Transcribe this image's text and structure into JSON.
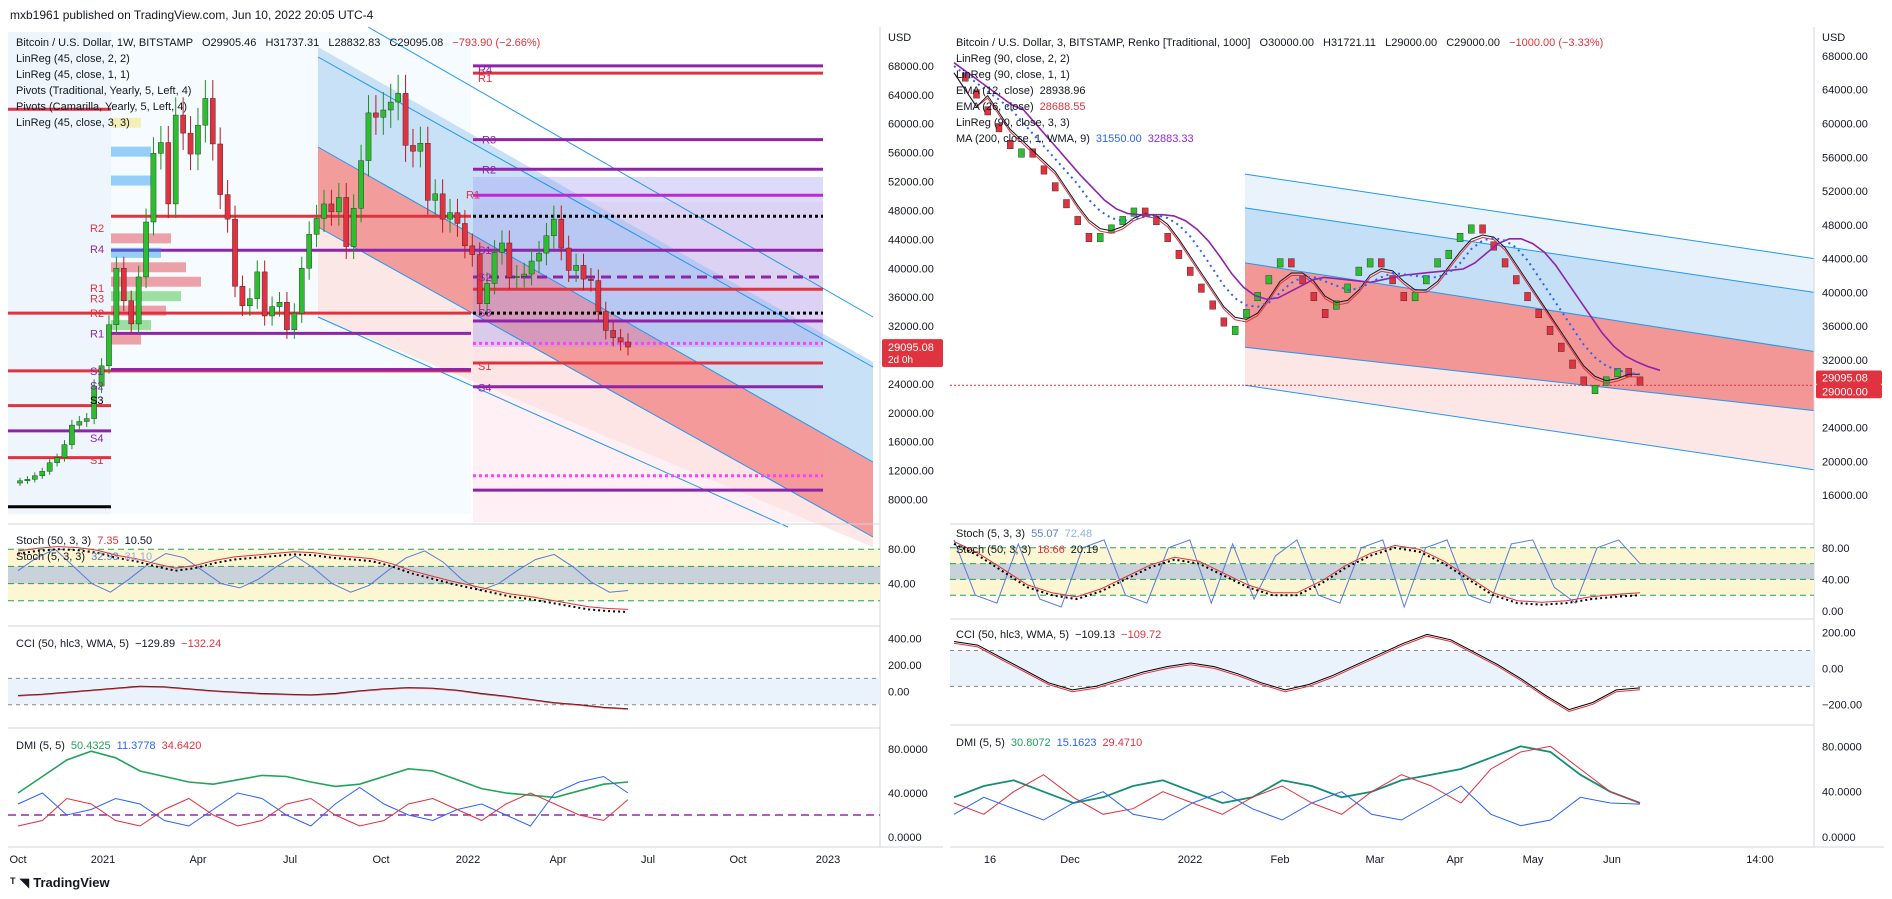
{
  "header": {
    "publisher": "mxb1961 published on TradingView.com, Jun 10, 2022 20:05 UTC-4"
  },
  "footer": {
    "brand": "TradingView",
    "logo": "tradingview-logo-icon"
  },
  "colors": {
    "up": "#2ebd2e",
    "down": "#e0323f",
    "pivot_red": "#e0323f",
    "pivot_purple": "#8a2be2",
    "channel_blue": "#2196f3",
    "stoch_blue": "#5a7bd8",
    "cci_black": "#000000",
    "dmi_green": "#22a35a"
  },
  "left_chart": {
    "title": "Bitcoin / U.S. Dollar, 1W, BITSTAMP",
    "ohlc": {
      "o": "O29905.46",
      "h": "H31737.31",
      "l": "L28832.83",
      "c": "C29095.08",
      "chg": "−793.90 (−2.66%)"
    },
    "indicators": [
      "LinReg (45, close, 2, 2)",
      "LinReg (45, close, 1, 1)",
      "Pivots (Traditional, Yearly, 5, Left, 4)",
      "Pivots (Camarilla, Yearly, 5, Left, 4)",
      "LinReg (45, close, 3, 3)"
    ],
    "currency": "USD",
    "price_ticks": [
      "68000.00",
      "64000.00",
      "60000.00",
      "56000.00",
      "52000.00",
      "48000.00",
      "44000.00",
      "40000.00",
      "36000.00",
      "32000.00",
      "28000.00",
      "24000.00",
      "20000.00",
      "16000.00",
      "12000.00",
      "8000.00"
    ],
    "last_price": "29095.08",
    "last_countdown": "2d 0h",
    "time_ticks": [
      "Oct",
      "2021",
      "Apr",
      "Jul",
      "Oct",
      "2022",
      "Apr",
      "Jul",
      "Oct",
      "2023"
    ],
    "pivot_labels": [
      "R4",
      "R1",
      "R3",
      "R2",
      "R1",
      "S1",
      "S2",
      "S3",
      "R2",
      "R4",
      "R1",
      "R3",
      "R2",
      "R1",
      "S1",
      "S2",
      "S3",
      "S1",
      "S4",
      "S4",
      "S1"
    ],
    "stoch": {
      "label1": "Stoch (50, 3, 3)",
      "v1a": "7.35",
      "v1b": "10.50",
      "label2": "Stoch (5, 3, 3)",
      "v2a": "32.93",
      "v2b": "31.10",
      "ticks": [
        "80.00",
        "40.00"
      ]
    },
    "cci": {
      "label": "CCI (50, hlc3, WMA, 5)",
      "v1": "−129.89",
      "v2": "−132.24",
      "ticks": [
        "400.00",
        "200.00",
        "0.00"
      ]
    },
    "dmi": {
      "label": "DMI (5, 5)",
      "v1": "50.4325",
      "v2": "11.3778",
      "v3": "34.6420",
      "ticks": [
        "80.0000",
        "40.0000",
        "0.0000"
      ]
    }
  },
  "right_chart": {
    "title": "Bitcoin / U.S. Dollar, 3, BITSTAMP, Renko [Traditional, 1000]",
    "ohlc": {
      "o": "O30000.00",
      "h": "H31721.11",
      "l": "L29000.00",
      "c": "C29000.00",
      "chg": "−1000.00 (−3.33%)"
    },
    "indicators": [
      "LinReg (90, close, 2, 2)",
      "LinReg (90, close, 1, 1)",
      "EMA (12, close)",
      "EMA (26, close)",
      "LinReg (90, close, 3, 3)",
      "MA (200, close, 1, WMA, 9)"
    ],
    "indicator_values": {
      "ema12": "28938.96",
      "ema26": "28688.55",
      "ma1": "31550.00",
      "ma2": "32883.33"
    },
    "currency": "USD",
    "price_ticks": [
      "68000.00",
      "64000.00",
      "60000.00",
      "56000.00",
      "52000.00",
      "48000.00",
      "44000.00",
      "40000.00",
      "36000.00",
      "32000.00",
      "28000.00",
      "24000.00",
      "20000.00",
      "16000.00"
    ],
    "last_price": "29095.08",
    "renko_price": "29000.00",
    "time_ticks": [
      "16",
      "Dec",
      "2022",
      "Feb",
      "Mar",
      "Apr",
      "May",
      "Jun",
      "14:00"
    ],
    "stoch": {
      "label1": "Stoch (5, 3, 3)",
      "v1a": "55.07",
      "v1b": "72.48",
      "label2": "Stoch (50, 3, 3)",
      "v2a": "18.66",
      "v2b": "20.19",
      "ticks": [
        "80.00",
        "40.00",
        "0.00"
      ]
    },
    "cci": {
      "label": "CCI (50, hlc3, WMA, 5)",
      "v1": "−109.13",
      "v2": "−109.72",
      "ticks": [
        "200.00",
        "0.00",
        "−200.00"
      ]
    },
    "dmi": {
      "label": "DMI (5, 5)",
      "v1": "30.8072",
      "v2": "15.1623",
      "v3": "29.4710",
      "ticks": [
        "80.0000",
        "40.0000",
        "0.0000"
      ]
    }
  },
  "chart_data": [
    {
      "type": "candlestick",
      "title": "Bitcoin / U.S. Dollar, 1W, BITSTAMP",
      "ylim": [
        6000,
        72000
      ],
      "x_range": [
        "Oct 2020",
        "Dec 2022"
      ],
      "closes": [
        10600,
        10800,
        11300,
        11900,
        13100,
        13800,
        15600,
        18300,
        18800,
        19200,
        23700,
        26500,
        32200,
        40000,
        35500,
        32300,
        38800,
        46400,
        55900,
        57400,
        48900,
        61200,
        58700,
        55800,
        59800,
        63500,
        57200,
        50200,
        46800,
        37500,
        34800,
        35800,
        39500,
        33400,
        34700,
        35300,
        31500,
        33800,
        40000,
        44700,
        46900,
        48900,
        47800,
        49800,
        43000,
        48300,
        54900,
        61500,
        60900,
        61900,
        63000,
        64200,
        57000,
        56200,
        57300,
        49400,
        50300,
        46800,
        47700,
        46200,
        43100,
        41900,
        35100,
        37900,
        42200,
        43500,
        38700,
        38900,
        39200,
        41000,
        42100,
        44500,
        46800,
        42800,
        39700,
        40400,
        38500,
        38300,
        34000,
        31400,
        30400,
        29800,
        29100
      ],
      "pivot_levels": [
        68000,
        67000,
        57800,
        53700,
        50100,
        47200,
        42500,
        38800,
        37100,
        33800,
        32700,
        29600,
        26900,
        23600,
        11300,
        9300
      ],
      "stoch_5_3_3": [
        55,
        70,
        80,
        60,
        40,
        30,
        45,
        62,
        75,
        70,
        55,
        40,
        35,
        45,
        60,
        72,
        58,
        40,
        30,
        38,
        55,
        70,
        78,
        65,
        45,
        32,
        40,
        55,
        68,
        74,
        60,
        42,
        30,
        32
      ],
      "stoch_50_3_3": [
        75,
        78,
        80,
        79,
        76,
        70,
        66,
        60,
        55,
        58,
        64,
        68,
        70,
        72,
        74,
        73,
        70,
        68,
        66,
        60,
        52,
        46,
        40,
        35,
        30,
        25,
        22,
        18,
        14,
        10,
        8,
        7
      ],
      "cci": [
        -30,
        -20,
        -5,
        10,
        25,
        40,
        35,
        20,
        5,
        -5,
        -15,
        -20,
        -25,
        -15,
        5,
        20,
        30,
        25,
        10,
        -15,
        -35,
        -60,
        -85,
        -100,
        -120,
        -130
      ],
      "dmi_plus": [
        30,
        40,
        20,
        25,
        35,
        30,
        15,
        10,
        25,
        40,
        35,
        20,
        10,
        30,
        45,
        30,
        20,
        15,
        25,
        30,
        20,
        10,
        40,
        50,
        55,
        40
      ],
      "dmi_minus": [
        10,
        15,
        35,
        30,
        15,
        10,
        25,
        35,
        20,
        10,
        15,
        30,
        35,
        20,
        10,
        15,
        30,
        35,
        25,
        15,
        30,
        40,
        30,
        20,
        15,
        34
      ],
      "adx": [
        40,
        55,
        70,
        78,
        72,
        60,
        55,
        50,
        48,
        52,
        56,
        55,
        50,
        46,
        48,
        55,
        62,
        60,
        52,
        44,
        40,
        38,
        36,
        42,
        48,
        50
      ]
    },
    {
      "type": "renko",
      "title": "Bitcoin / U.S. Dollar, 3, BITSTAMP, Renko [Traditional, 1000]",
      "brick_size": 1000,
      "ylim": [
        14000,
        70000
      ],
      "x_range": [
        "Nov 16 2021",
        "Jun 2022"
      ],
      "path": [
        66000,
        64000,
        62000,
        60000,
        58000,
        56000,
        57000,
        55000,
        53000,
        51000,
        49000,
        47000,
        46000,
        47000,
        48000,
        49000,
        50000,
        49000,
        47000,
        45000,
        43000,
        41000,
        39000,
        37000,
        35000,
        36000,
        38000,
        40000,
        42000,
        44000,
        42000,
        40000,
        38000,
        37000,
        39000,
        41000,
        43000,
        44000,
        42000,
        40000,
        38000,
        40000,
        42000,
        44000,
        45000,
        47000,
        48000,
        46000,
        44000,
        42000,
        40000,
        38000,
        36000,
        34000,
        32000,
        30000,
        28000,
        29000,
        30000,
        31000,
        30000,
        29000
      ],
      "stoch_5_3_3": [
        90,
        20,
        10,
        85,
        15,
        5,
        80,
        90,
        20,
        10,
        80,
        90,
        10,
        85,
        15,
        70,
        90,
        20,
        10,
        80,
        90,
        5,
        80,
        90,
        20,
        10,
        85,
        90,
        30,
        10,
        80,
        90,
        60
      ],
      "stoch_50_3_3": [
        85,
        70,
        50,
        30,
        20,
        15,
        25,
        40,
        55,
        65,
        60,
        45,
        30,
        20,
        20,
        35,
        55,
        70,
        80,
        75,
        60,
        40,
        20,
        10,
        8,
        10,
        15,
        18,
        20
      ],
      "cci": [
        150,
        130,
        60,
        -10,
        -80,
        -120,
        -100,
        -60,
        -20,
        10,
        30,
        10,
        -30,
        -80,
        -120,
        -90,
        -40,
        20,
        80,
        140,
        190,
        160,
        90,
        20,
        -60,
        -150,
        -230,
        -190,
        -120,
        -109
      ],
      "dmi_plus": [
        30,
        20,
        40,
        55,
        35,
        20,
        25,
        40,
        30,
        20,
        35,
        45,
        30,
        20,
        40,
        55,
        45,
        30,
        60,
        75,
        80,
        60,
        40,
        30
      ],
      "dmi_minus": [
        20,
        35,
        25,
        15,
        30,
        40,
        20,
        15,
        30,
        40,
        25,
        15,
        30,
        40,
        20,
        15,
        30,
        45,
        20,
        10,
        15,
        35,
        30,
        29
      ],
      "adx": [
        35,
        45,
        50,
        40,
        30,
        35,
        45,
        50,
        40,
        30,
        35,
        50,
        45,
        35,
        40,
        50,
        55,
        60,
        70,
        80,
        75,
        55,
        40,
        30
      ]
    }
  ]
}
